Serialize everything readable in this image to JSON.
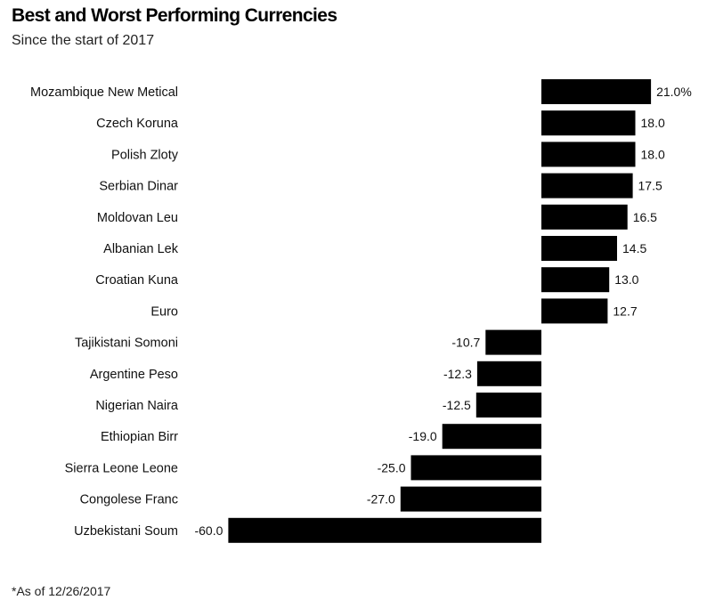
{
  "chart_data": {
    "type": "bar",
    "orientation": "horizontal",
    "title": "Best and Worst Performing Currencies",
    "subtitle": "Since the start of 2017",
    "footnote": "*As of 12/26/2017",
    "categories": [
      "Mozambique New Metical",
      "Czech Koruna",
      "Polish Zloty",
      "Serbian Dinar",
      "Moldovan Leu",
      "Albanian Lek",
      "Croatian Kuna",
      "Euro",
      "Tajikistani Somoni",
      "Argentine Peso",
      "Nigerian Naira",
      "Ethiopian Birr",
      "Sierra Leone Leone",
      "Congolese Franc",
      "Uzbekistani Soum"
    ],
    "values": [
      21.0,
      18.0,
      18.0,
      17.5,
      16.5,
      14.5,
      13.0,
      12.7,
      -10.7,
      -12.3,
      -12.5,
      -19.0,
      -25.0,
      -27.0,
      -60.0
    ],
    "value_labels": [
      "21.0%",
      "18.0",
      "18.0",
      "17.5",
      "16.5",
      "14.5",
      "13.0",
      "12.7",
      "-10.7",
      "-12.3",
      "-12.5",
      "-19.0",
      "-25.0",
      "-27.0",
      "-60.0"
    ],
    "unit": "%",
    "xlim": [
      -60,
      21
    ],
    "bar_color": "#000000",
    "grid": false,
    "legend": "none"
  }
}
